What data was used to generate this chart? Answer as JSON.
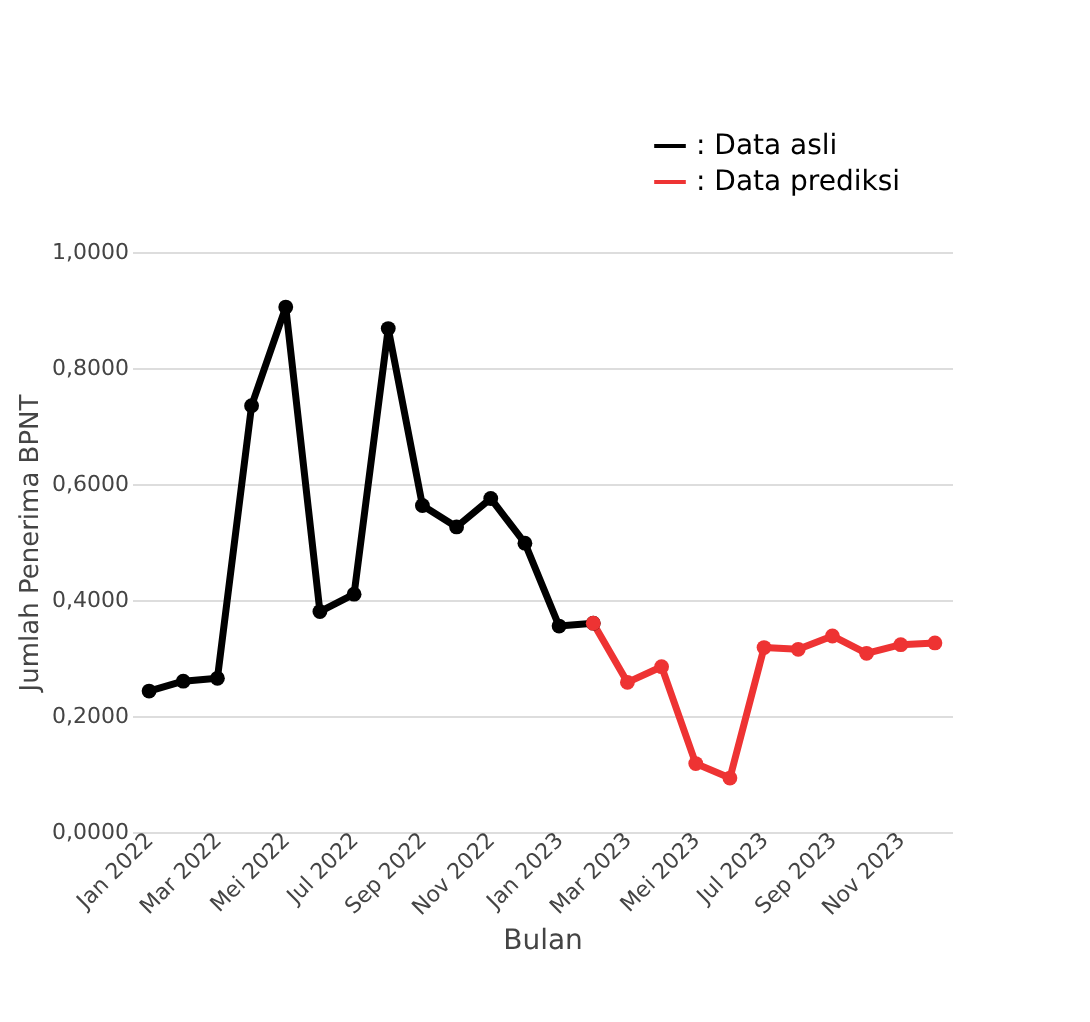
{
  "chart_data": {
    "type": "line",
    "xlabel": "Bulan",
    "ylabel": "Jumlah Penerima BPNT",
    "categories": [
      "Jan 2022",
      null,
      "Mar 2022",
      null,
      "Mei 2022",
      null,
      "Jul 2022",
      null,
      "Sep 2022",
      null,
      "Nov 2022",
      null,
      "Jan 2023",
      null,
      "Mar 2023",
      null,
      "Mei 2023",
      null,
      "Jul 2023",
      null,
      "Sep 2023",
      null,
      "Nov 2023",
      null
    ],
    "series": [
      {
        "name": ": Data asli",
        "color": "#000000",
        "values": [
          0.243,
          0.26,
          0.265,
          0.735,
          0.905,
          0.38,
          0.41,
          0.868,
          0.563,
          0.526,
          0.575,
          0.498,
          0.355,
          0.36,
          null,
          null,
          null,
          null,
          null,
          null,
          null,
          null,
          null,
          null
        ]
      },
      {
        "name": ": Data prediksi",
        "color": "#ee3333",
        "values": [
          null,
          null,
          null,
          null,
          null,
          null,
          null,
          null,
          null,
          null,
          null,
          null,
          null,
          0.36,
          0.258,
          0.285,
          0.118,
          0.093,
          0.318,
          0.315,
          0.338,
          0.308,
          0.323,
          0.326
        ]
      }
    ],
    "ylim": [
      0,
      1
    ],
    "yticks": [
      {
        "value": 0,
        "label": "0,0000"
      },
      {
        "value": 0.2,
        "label": "0,2000"
      },
      {
        "value": 0.4,
        "label": "0,4000"
      },
      {
        "value": 0.6,
        "label": "0,6000"
      },
      {
        "value": 0.8,
        "label": "0,8000"
      },
      {
        "value": 1,
        "label": "1,0000"
      }
    ],
    "grid": "y",
    "legend": "top right",
    "marker": "circle",
    "line_style": "solid"
  }
}
